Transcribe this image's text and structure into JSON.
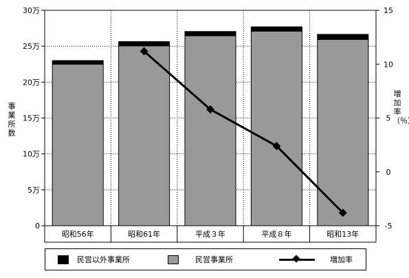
{
  "chart_data": {
    "type": "bar",
    "stacked": true,
    "categories": [
      "昭和56年",
      "昭和61年",
      "平成３年",
      "平成８年",
      "昭和13年"
    ],
    "series": [
      {
        "name": "民営事業所",
        "type": "bar",
        "color": "#999999",
        "values": [
          225000,
          250500,
          264500,
          271000,
          259500
        ]
      },
      {
        "name": "民営以外事業所",
        "type": "bar",
        "color": "#000000",
        "values": [
          5000,
          6000,
          6000,
          6000,
          7000
        ]
      },
      {
        "name": "増加率",
        "type": "line",
        "axis": "right",
        "color": "#000000",
        "values": [
          null,
          11.2,
          5.8,
          2.4,
          -3.8
        ]
      }
    ],
    "left_axis": {
      "label": "事業所数",
      "ylim": [
        0,
        300000
      ],
      "ticks": [
        0,
        50000,
        100000,
        150000,
        200000,
        250000,
        300000
      ],
      "tick_labels": [
        "0",
        "5万",
        "10万",
        "15万",
        "20万",
        "25万",
        "30万"
      ]
    },
    "right_axis": {
      "label": "増加率（％）",
      "ylim": [
        -5,
        15
      ],
      "ticks": [
        -5,
        0,
        5,
        10,
        15
      ],
      "tick_labels": [
        "-5",
        "0",
        "5",
        "10",
        "15"
      ]
    },
    "grid": "dotted",
    "legend": {
      "position": "bottom",
      "entries": [
        "民営以外事業所",
        "民営事業所",
        "増加率"
      ]
    }
  }
}
